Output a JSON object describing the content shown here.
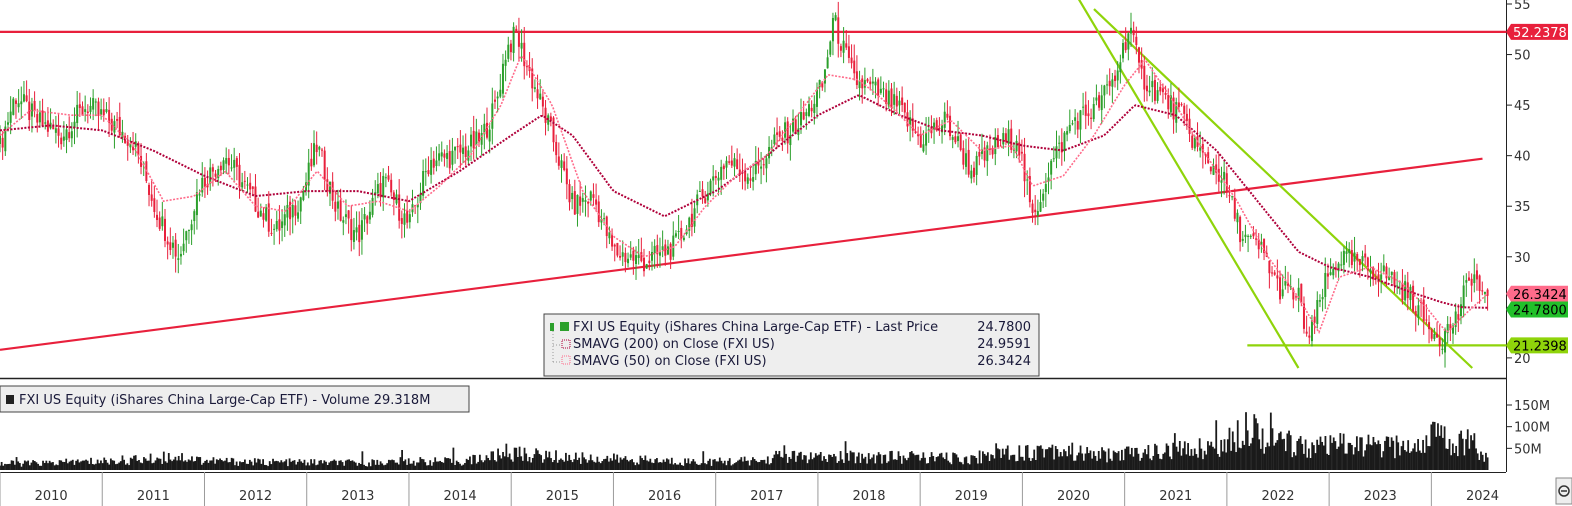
{
  "chart_data": [
    {
      "type": "candlestick",
      "ylim": [
        19,
        55
      ],
      "yticks": [
        20,
        25,
        30,
        35,
        40,
        45,
        50,
        55
      ],
      "grid": false,
      "legend_placement": "bottom-center",
      "x": [
        "2010",
        "2011",
        "2012",
        "2013",
        "2014",
        "2015",
        "2016",
        "2017",
        "2018",
        "2019",
        "2020",
        "2021",
        "2022",
        "2023",
        "2024"
      ],
      "legend": [
        {
          "label": "FXI US Equity (iShares China Large-Cap ETF) - Last Price",
          "value": "24.7800",
          "color": "#2ca02c"
        },
        {
          "label": "SMAVG (200)  on Close (FXI US)",
          "value": "24.9591",
          "color": "#b0003a"
        },
        {
          "label": "SMAVG (50)  on Close (FXI US)",
          "value": "26.3424",
          "color": "#ff6b8a"
        }
      ],
      "price_tags": [
        {
          "value": "52.2378",
          "color": "#e8203c",
          "text_color": "#ffffff"
        },
        {
          "value": "26.3424",
          "color": "#ff6b8a",
          "text_color": "#000000"
        },
        {
          "value": "24.7800",
          "color": "#22c02a",
          "text_color": "#000000"
        },
        {
          "value": "21.2398",
          "color": "#8fd40a",
          "text_color": "#000000"
        }
      ],
      "price_series": {
        "name": "FXI US Equity (iShares China Large-Cap ETF) - Last Price",
        "x": [
          2010.0,
          2010.15,
          2010.35,
          2010.6,
          2010.85,
          2011.05,
          2011.3,
          2011.55,
          2011.75,
          2011.95,
          2012.2,
          2012.45,
          2012.7,
          2012.95,
          2013.1,
          2013.3,
          2013.5,
          2013.75,
          2014.0,
          2014.2,
          2014.45,
          2014.7,
          2014.85,
          2014.95,
          2015.05,
          2015.15,
          2015.4,
          2015.6,
          2015.8,
          2016.0,
          2016.3,
          2016.6,
          2016.9,
          2017.1,
          2017.35,
          2017.6,
          2017.85,
          2018.05,
          2018.15,
          2018.35,
          2018.55,
          2018.8,
          2019.0,
          2019.25,
          2019.5,
          2019.75,
          2019.95,
          2020.1,
          2020.25,
          2020.5,
          2020.7,
          2020.9,
          2021.05,
          2021.15,
          2021.35,
          2021.55,
          2021.75,
          2021.95,
          2022.15,
          2022.35,
          2022.5,
          2022.7,
          2022.8,
          2022.95,
          2023.1,
          2023.35,
          2023.6,
          2023.8,
          2023.95,
          2024.1,
          2024.25,
          2024.4,
          2024.55
        ],
        "values": [
          41.0,
          46.0,
          43.5,
          42.0,
          45.0,
          43.5,
          41.5,
          34.0,
          30.0,
          37.0,
          40.0,
          36.0,
          32.5,
          36.0,
          41.0,
          34.5,
          32.0,
          37.5,
          33.0,
          39.5,
          40.0,
          41.5,
          45.0,
          50.5,
          52.0,
          49.0,
          42.0,
          35.0,
          36.0,
          30.5,
          29.5,
          31.0,
          36.5,
          39.5,
          38.0,
          41.5,
          43.5,
          47.0,
          53.5,
          47.5,
          46.5,
          44.5,
          41.5,
          43.5,
          38.5,
          41.0,
          42.0,
          33.5,
          38.5,
          43.5,
          44.5,
          47.5,
          53.0,
          48.0,
          46.0,
          44.0,
          40.0,
          38.0,
          32.0,
          30.5,
          27.0,
          26.0,
          21.5,
          27.0,
          30.0,
          29.0,
          28.0,
          26.0,
          23.5,
          22.0,
          24.0,
          28.5,
          25.0
        ]
      },
      "sma200": {
        "name": "SMAVG (200)  on Close (FXI US)",
        "x": [
          2010.0,
          2010.5,
          2011.0,
          2011.5,
          2012.0,
          2012.5,
          2013.0,
          2013.5,
          2014.0,
          2014.5,
          2015.0,
          2015.3,
          2015.6,
          2016.0,
          2016.5,
          2017.0,
          2017.5,
          2018.0,
          2018.4,
          2018.8,
          2019.2,
          2019.6,
          2020.0,
          2020.4,
          2020.8,
          2021.1,
          2021.5,
          2021.9,
          2022.3,
          2022.7,
          2023.0,
          2023.4,
          2023.8,
          2024.1,
          2024.3,
          2024.55
        ],
        "values": [
          42.5,
          43.0,
          42.5,
          40.5,
          38.0,
          36.0,
          36.5,
          36.5,
          35.5,
          38.5,
          42.0,
          44.0,
          42.0,
          36.5,
          34.0,
          36.5,
          40.0,
          44.0,
          46.0,
          44.0,
          42.5,
          42.0,
          41.0,
          40.5,
          42.0,
          45.0,
          44.0,
          40.5,
          35.5,
          30.5,
          29.0,
          28.0,
          26.5,
          25.5,
          25.0,
          24.96
        ]
      },
      "sma50": {
        "name": "SMAVG (50)  on Close (FXI US)",
        "x": [
          2010.0,
          2010.3,
          2010.7,
          2011.0,
          2011.3,
          2011.6,
          2011.9,
          2012.2,
          2012.5,
          2012.8,
          2013.1,
          2013.4,
          2013.7,
          2014.0,
          2014.3,
          2014.6,
          2014.9,
          2015.1,
          2015.4,
          2015.7,
          2016.0,
          2016.3,
          2016.6,
          2016.9,
          2017.2,
          2017.5,
          2017.8,
          2018.1,
          2018.4,
          2018.7,
          2019.0,
          2019.3,
          2019.6,
          2019.9,
          2020.1,
          2020.4,
          2020.7,
          2021.0,
          2021.2,
          2021.5,
          2021.8,
          2022.1,
          2022.4,
          2022.7,
          2022.9,
          2023.1,
          2023.4,
          2023.7,
          2023.95,
          2024.15,
          2024.35,
          2024.55
        ],
        "values": [
          42.0,
          44.5,
          44.0,
          44.0,
          41.0,
          35.5,
          36.0,
          38.5,
          35.0,
          34.5,
          38.5,
          35.0,
          35.5,
          34.5,
          37.0,
          40.0,
          45.0,
          50.0,
          45.0,
          36.5,
          32.0,
          30.0,
          31.0,
          35.0,
          38.0,
          40.0,
          44.0,
          48.0,
          47.5,
          45.0,
          42.0,
          43.5,
          40.5,
          41.0,
          37.0,
          38.0,
          42.0,
          47.0,
          49.5,
          45.0,
          40.0,
          35.5,
          30.0,
          26.0,
          22.5,
          28.0,
          29.0,
          27.5,
          25.0,
          22.5,
          24.5,
          26.34
        ]
      },
      "trendlines": [
        {
          "name": "resistance",
          "color": "#e8203c",
          "points": [
            [
              2010.0,
              52.24
            ],
            [
              2024.8,
              52.24
            ]
          ]
        },
        {
          "name": "rising-support",
          "color": "#e8203c",
          "points": [
            [
              2010.0,
              20.8
            ],
            [
              2024.5,
              39.7
            ]
          ]
        },
        {
          "name": "downtrend-steep",
          "color": "#8fd40a",
          "points": [
            [
              2020.55,
              55.5
            ],
            [
              2022.7,
              19.0
            ]
          ]
        },
        {
          "name": "downtrend-shallow",
          "color": "#8fd40a",
          "points": [
            [
              2020.7,
              54.5
            ],
            [
              2024.4,
              19.0
            ]
          ]
        },
        {
          "name": "support-21",
          "color": "#8fd40a",
          "points": [
            [
              2022.2,
              21.24
            ],
            [
              2024.8,
              21.24
            ]
          ]
        }
      ]
    },
    {
      "type": "bar",
      "legend": {
        "label": "FXI US Equity (iShares China Large-Cap ETF) - Volume",
        "value": "29.318M"
      },
      "ylim": [
        0,
        180
      ],
      "yticks": [
        {
          "value": 50,
          "label": "50M"
        },
        {
          "value": 100,
          "label": "100M"
        },
        {
          "value": 150,
          "label": "150M"
        }
      ],
      "tag": {
        "value": "29.318M",
        "label": "29.318"
      },
      "x": [
        2010.0,
        2010.5,
        2011.0,
        2011.5,
        2011.7,
        2012.0,
        2012.5,
        2013.0,
        2013.5,
        2014.0,
        2014.5,
        2015.0,
        2015.5,
        2016.0,
        2016.5,
        2017.0,
        2017.5,
        2017.6,
        2018.0,
        2018.5,
        2019.0,
        2019.5,
        2019.8,
        2020.0,
        2020.3,
        2020.6,
        2020.9,
        2021.0,
        2021.2,
        2021.5,
        2021.8,
        2022.0,
        2022.2,
        2022.4,
        2022.6,
        2022.9,
        2023.1,
        2023.4,
        2023.7,
        2023.9,
        2024.0,
        2024.2,
        2024.4,
        2024.55
      ],
      "values": [
        20,
        22,
        28,
        35,
        45,
        30,
        25,
        24,
        22,
        28,
        26,
        52,
        40,
        35,
        28,
        26,
        30,
        45,
        38,
        42,
        40,
        35,
        62,
        55,
        70,
        50,
        48,
        52,
        55,
        60,
        72,
        80,
        160,
        95,
        85,
        70,
        78,
        75,
        72,
        80,
        120,
        85,
        95,
        29.318
      ]
    }
  ]
}
